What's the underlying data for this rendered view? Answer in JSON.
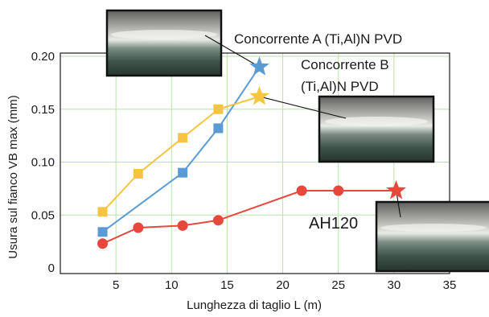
{
  "chart_data": {
    "type": "line",
    "title": "",
    "xlabel": "Lunghezza di taglio L (m)",
    "ylabel": "Usura sul fianco VB max (mm)",
    "xlim": [
      0,
      35
    ],
    "ylim": [
      0,
      0.2
    ],
    "grid": true,
    "x_ticks": [
      "5",
      "10",
      "15",
      "20",
      "25",
      "30",
      "35"
    ],
    "y_ticks": [
      "0",
      "0.05",
      "0.10",
      "0.15",
      "0.20"
    ],
    "series": [
      {
        "name": "Concorrente A (Ti,Al)N PVD",
        "color": "#5b9bd5",
        "marker": "square",
        "end_marker": "star",
        "points": [
          [
            3.8,
            0.034
          ],
          [
            11,
            0.09
          ],
          [
            14.2,
            0.132
          ],
          [
            17.9,
            0.19
          ]
        ]
      },
      {
        "name": "Concorrente B\n(Ti,Al)N PVD",
        "color": "#f5c542",
        "marker": "square",
        "end_marker": "star",
        "points": [
          [
            3.8,
            0.053
          ],
          [
            7,
            0.089
          ],
          [
            11,
            0.123
          ],
          [
            14.2,
            0.15
          ],
          [
            17.9,
            0.162
          ]
        ]
      },
      {
        "name": "AH120",
        "color": "#e8473c",
        "marker": "circle",
        "end_marker": "star",
        "points": [
          [
            3.8,
            0.023
          ],
          [
            7,
            0.038
          ],
          [
            11,
            0.04
          ],
          [
            14.2,
            0.045
          ],
          [
            21.7,
            0.073
          ],
          [
            25,
            0.073
          ],
          [
            30.2,
            0.073
          ]
        ]
      }
    ],
    "annotations": [
      {
        "text": "Concorrente A (Ti,Al)N PVD",
        "series": 0
      },
      {
        "text": "Concorrente B",
        "series": 1
      },
      {
        "text": "(Ti,Al)N PVD",
        "series": 1
      },
      {
        "text": "AH120",
        "series": 2
      }
    ]
  }
}
